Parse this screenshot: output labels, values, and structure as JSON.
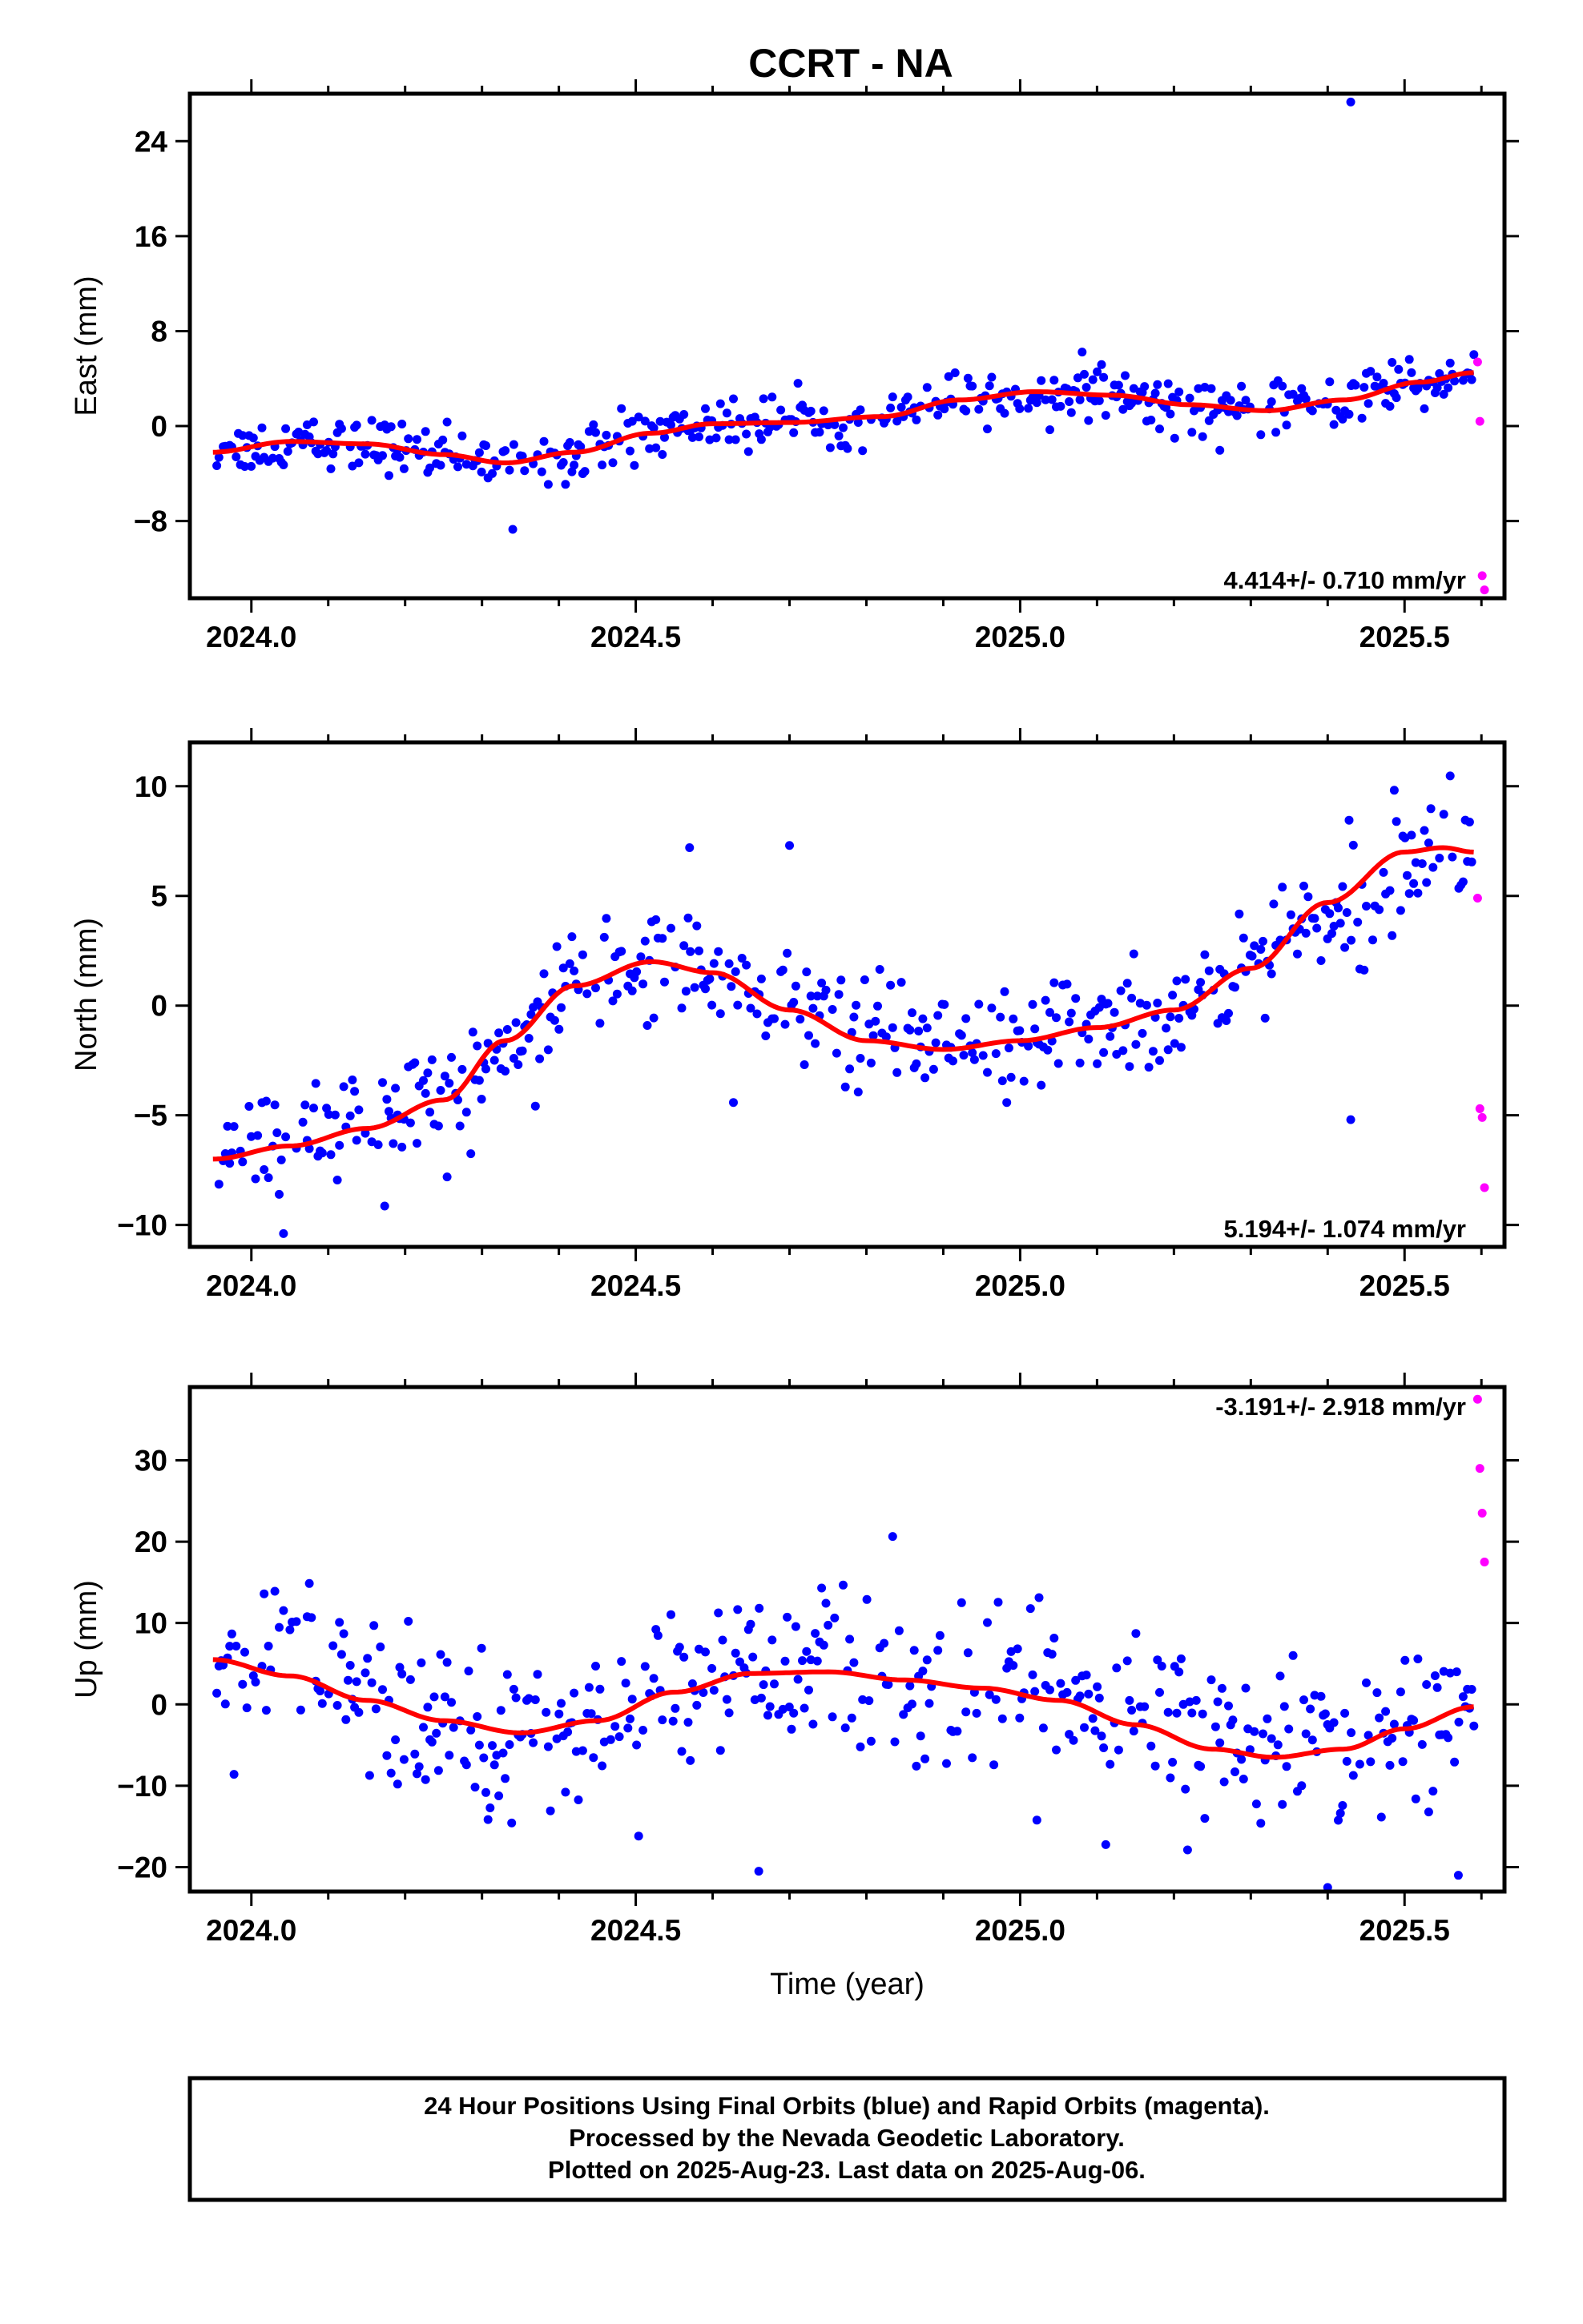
{
  "title": "CCRT - NA",
  "colors": {
    "final": "#0000ff",
    "rapid": "#ff00ff",
    "fit": "#ff0000",
    "frame": "#000000"
  },
  "footer": {
    "line1": "24 Hour Positions Using Final Orbits (blue) and Rapid Orbits (magenta).",
    "line2": "Processed by the Nevada Geodetic Laboratory.",
    "line3": "Plotted on 2025-Aug-23. Last data on 2025-Aug-06."
  },
  "chart_data": [
    {
      "type": "scatter",
      "component": "east",
      "ylabel": "East (mm)",
      "xlabel": "",
      "xlim": [
        2023.92,
        2025.63
      ],
      "ylim": [
        -14.5,
        28.0
      ],
      "x_ticks": [
        "2024.0",
        "2024.5",
        "2025.0",
        "2025.5"
      ],
      "y_ticks": [
        "24",
        "16",
        "8",
        "0",
        "−8"
      ],
      "rate": "4.414+/- 0.710 mm/yr",
      "fit": {
        "x": [
          2023.95,
          2024.05,
          2024.15,
          2024.25,
          2024.33,
          2024.42,
          2024.52,
          2024.6,
          2024.7,
          2024.82,
          2024.92,
          2025.02,
          2025.12,
          2025.22,
          2025.32,
          2025.42,
          2025.52,
          2025.59
        ],
        "y": [
          -2.2,
          -1.3,
          -1.5,
          -2.4,
          -3.1,
          -2.2,
          -0.6,
          0.2,
          0.3,
          0.8,
          2.2,
          2.9,
          2.6,
          1.8,
          1.3,
          2.2,
          3.7,
          4.5
        ]
      },
      "rapid": {
        "x": [
          2025.595,
          2025.598,
          2025.601,
          2025.604
        ],
        "y": [
          5.4,
          0.4,
          -12.6,
          -13.8
        ]
      },
      "outliers": {
        "x": [
          2024.34,
          2025.43
        ],
        "y": [
          -8.7,
          27.3
        ]
      }
    },
    {
      "type": "scatter",
      "component": "north",
      "ylabel": "North (mm)",
      "xlabel": "",
      "xlim": [
        2023.92,
        2025.63
      ],
      "ylim": [
        -11.0,
        12.0
      ],
      "x_ticks": [
        "2024.0",
        "2024.5",
        "2025.0",
        "2025.5"
      ],
      "y_ticks": [
        "10",
        "5",
        "0",
        "−5",
        "−10"
      ],
      "rate": "5.194+/- 1.074 mm/yr",
      "fit": {
        "x": [
          2023.95,
          2024.05,
          2024.15,
          2024.25,
          2024.33,
          2024.42,
          2024.52,
          2024.6,
          2024.7,
          2024.8,
          2024.9,
          2025.0,
          2025.1,
          2025.2,
          2025.3,
          2025.4,
          2025.5,
          2025.55,
          2025.59
        ],
        "y": [
          -7.0,
          -6.4,
          -5.6,
          -4.3,
          -1.6,
          0.9,
          2.0,
          1.5,
          -0.2,
          -1.6,
          -2.0,
          -1.6,
          -1.0,
          -0.2,
          1.7,
          4.7,
          7.0,
          7.2,
          7.0
        ]
      },
      "rapid": {
        "x": [
          2025.595,
          2025.598,
          2025.601,
          2025.604
        ],
        "y": [
          4.9,
          -4.7,
          -5.1,
          -8.3
        ]
      },
      "outliers": {
        "x": [
          2024.57,
          2024.7,
          2025.43
        ],
        "y": [
          7.2,
          7.3,
          -5.2
        ]
      }
    },
    {
      "type": "scatter",
      "component": "up",
      "ylabel": "Up (mm)",
      "xlabel": "Time (year)",
      "xlim": [
        2023.92,
        2025.63
      ],
      "ylim": [
        -23.0,
        39.0
      ],
      "x_ticks": [
        "2024.0",
        "2024.5",
        "2025.0",
        "2025.5"
      ],
      "y_ticks": [
        "30",
        "20",
        "10",
        "0",
        "−10",
        "−20"
      ],
      "rate": "-3.191+/- 2.918 mm/yr",
      "fit": {
        "x": [
          2023.95,
          2024.05,
          2024.15,
          2024.25,
          2024.35,
          2024.45,
          2024.55,
          2024.65,
          2024.75,
          2024.85,
          2024.95,
          2025.05,
          2025.15,
          2025.25,
          2025.33,
          2025.42,
          2025.5,
          2025.59
        ],
        "y": [
          5.5,
          3.5,
          0.5,
          -2.0,
          -3.5,
          -2.0,
          1.5,
          3.8,
          4.0,
          3.0,
          2.0,
          0.5,
          -2.5,
          -5.5,
          -6.5,
          -5.5,
          -3.0,
          -0.3
        ]
      },
      "rapid": {
        "x": [
          2025.595,
          2025.598,
          2025.601,
          2025.604
        ],
        "y": [
          37.5,
          29.0,
          23.5,
          17.5
        ]
      },
      "outliers": {
        "x": [
          2024.66,
          2025.4,
          2025.57
        ],
        "y": [
          -20.5,
          -22.5,
          -21.0
        ]
      }
    }
  ]
}
